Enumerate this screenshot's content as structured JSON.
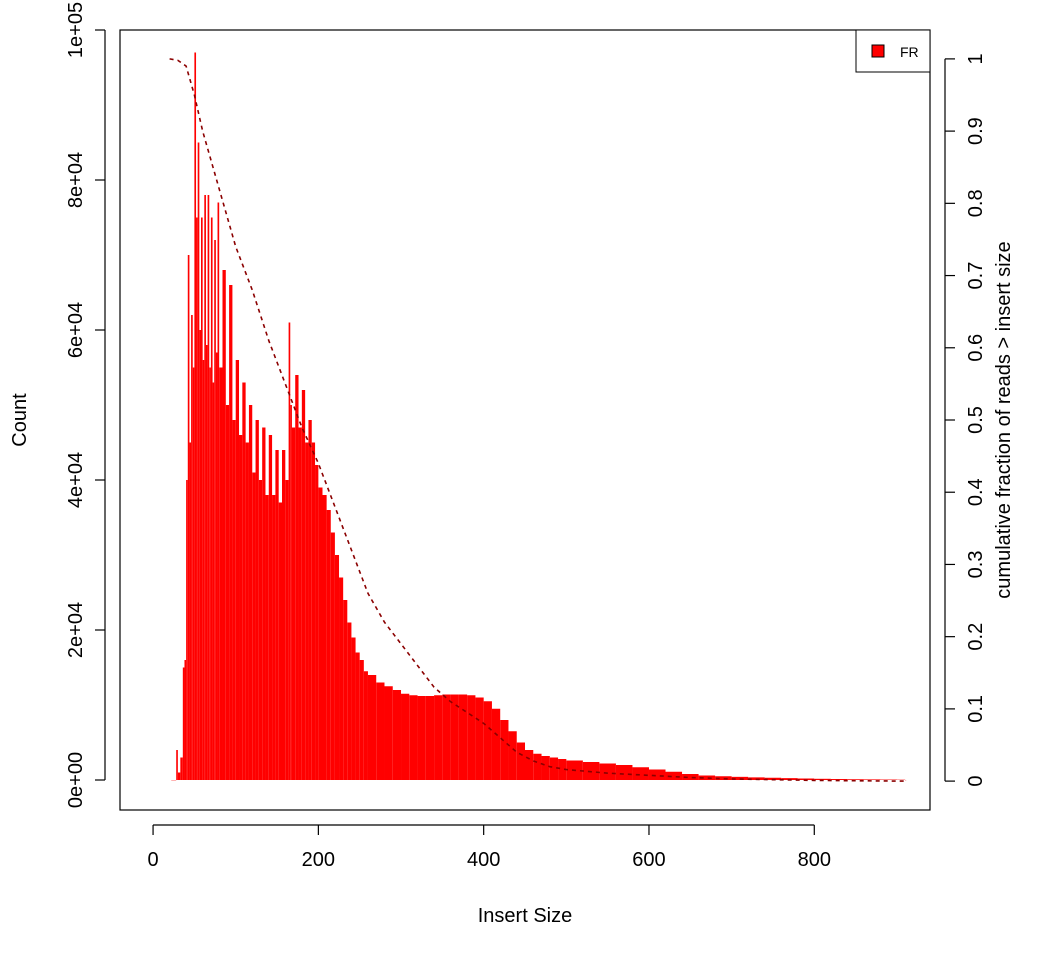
{
  "chart_data": {
    "type": "bar",
    "title": "",
    "xlabel": "Insert Size",
    "ylabel": "Count",
    "y2label": "cumulative fraction of reads > insert size",
    "xlim": [
      -40,
      940
    ],
    "ylim": [
      -4000,
      100000
    ],
    "y2lim": [
      -0.04,
      1.04
    ],
    "x_ticks": [
      0,
      200,
      400,
      600,
      800
    ],
    "x_tick_labels": [
      "0",
      "200",
      "400",
      "600",
      "800"
    ],
    "y_ticks": [
      0,
      20000,
      40000,
      60000,
      80000,
      100000
    ],
    "y_tick_labels": [
      "0e+00",
      "2e+04",
      "4e+04",
      "6e+04",
      "8e+04",
      "1e+05"
    ],
    "y2_ticks": [
      0,
      0.1,
      0.2,
      0.3,
      0.4,
      0.5,
      0.6,
      0.7,
      0.8,
      0.9,
      1
    ],
    "y2_tick_labels": [
      "0",
      "0.1",
      "0.2",
      "0.3",
      "0.4",
      "0.5",
      "0.6",
      "0.7",
      "0.8",
      "0.9",
      "1"
    ],
    "grid": false,
    "legend": {
      "position": "top-right",
      "entries": [
        {
          "label": "FR",
          "color": "#ff0000"
        }
      ]
    },
    "series": [
      {
        "name": "FR",
        "color": "#ff0000",
        "kind": "histogram",
        "x": [
          22,
          28,
          30,
          33,
          36,
          38,
          40,
          42,
          44,
          46,
          48,
          50,
          52,
          54,
          56,
          58,
          60,
          62,
          64,
          66,
          68,
          70,
          72,
          74,
          76,
          78,
          80,
          84,
          88,
          92,
          96,
          100,
          104,
          108,
          112,
          116,
          120,
          124,
          128,
          132,
          136,
          140,
          144,
          148,
          152,
          156,
          160,
          164,
          166,
          168,
          172,
          176,
          180,
          184,
          188,
          192,
          196,
          200,
          205,
          210,
          215,
          220,
          225,
          230,
          235,
          240,
          245,
          250,
          255,
          260,
          270,
          280,
          290,
          300,
          310,
          320,
          330,
          340,
          350,
          360,
          370,
          380,
          390,
          400,
          410,
          420,
          430,
          440,
          450,
          460,
          470,
          480,
          490,
          500,
          520,
          540,
          560,
          580,
          600,
          620,
          640,
          660,
          680,
          700,
          720,
          740,
          760,
          780,
          800,
          820,
          840,
          860,
          880,
          900,
          910
        ],
        "y": [
          0,
          4000,
          1000,
          3000,
          15000,
          16000,
          40000,
          70000,
          45000,
          62000,
          55000,
          97000,
          75000,
          85000,
          60000,
          75000,
          56000,
          78000,
          58000,
          78000,
          55000,
          75000,
          53000,
          72000,
          57000,
          77000,
          55000,
          68000,
          50000,
          66000,
          48000,
          56000,
          46000,
          53000,
          45000,
          50000,
          41000,
          48000,
          40000,
          47000,
          38000,
          46000,
          38000,
          44000,
          37000,
          44000,
          40000,
          61000,
          50000,
          47000,
          54000,
          47000,
          52000,
          45000,
          48000,
          45000,
          42000,
          39000,
          38000,
          36000,
          33000,
          30000,
          27000,
          24000,
          21000,
          19000,
          17000,
          16000,
          14500,
          14000,
          13000,
          12500,
          12000,
          11500,
          11300,
          11200,
          11200,
          11300,
          11400,
          11400,
          11400,
          11300,
          11000,
          10500,
          9500,
          8000,
          6500,
          5000,
          4000,
          3500,
          3200,
          3000,
          2800,
          2600,
          2400,
          2200,
          2000,
          1700,
          1400,
          1100,
          800,
          600,
          500,
          420,
          350,
          300,
          250,
          200,
          160,
          130,
          100,
          80,
          60,
          40,
          0
        ]
      },
      {
        "name": "",
        "color": "#8b0000",
        "kind": "cumulative-line",
        "axis": "right",
        "x": [
          20,
          30,
          40,
          50,
          60,
          70,
          80,
          90,
          100,
          120,
          140,
          160,
          180,
          200,
          220,
          240,
          260,
          280,
          300,
          320,
          340,
          360,
          380,
          400,
          420,
          440,
          460,
          480,
          500,
          550,
          600,
          650,
          700,
          750,
          800,
          850,
          910
        ],
        "y": [
          1.0,
          0.998,
          0.99,
          0.95,
          0.9,
          0.86,
          0.82,
          0.78,
          0.74,
          0.68,
          0.61,
          0.55,
          0.49,
          0.44,
          0.38,
          0.32,
          0.26,
          0.22,
          0.19,
          0.16,
          0.13,
          0.11,
          0.095,
          0.08,
          0.06,
          0.04,
          0.028,
          0.02,
          0.016,
          0.011,
          0.008,
          0.005,
          0.003,
          0.002,
          0.001,
          0.0005,
          0.0
        ]
      }
    ]
  }
}
